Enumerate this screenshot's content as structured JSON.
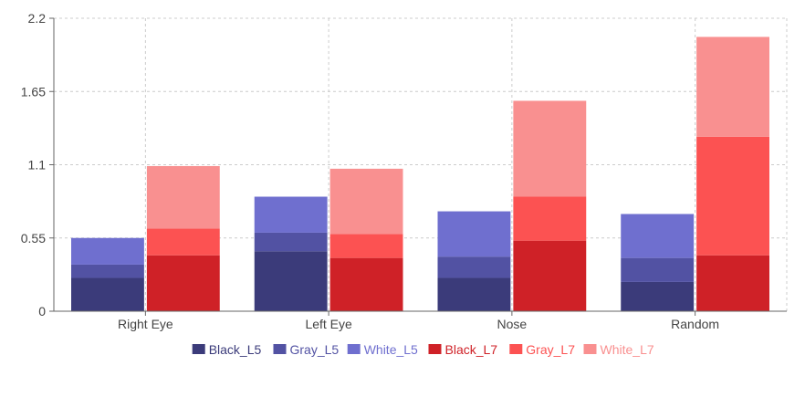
{
  "chart_data": {
    "type": "bar",
    "stacked": true,
    "grid": true,
    "legend_position": "bottom",
    "title": "",
    "xlabel": "",
    "ylabel": "",
    "categories": [
      "Right Eye",
      "Left Eye",
      "Nose",
      "Random"
    ],
    "ylim": [
      0,
      2.2
    ],
    "yticks": [
      "0",
      "0.55",
      "1.1",
      "1.65",
      "2.2"
    ],
    "stacks": [
      {
        "stack": "L5",
        "series": [
          {
            "name": "Black_L5",
            "color": "#3b3b7a",
            "values": [
              0.25,
              0.45,
              0.25,
              0.22
            ]
          },
          {
            "name": "Gray_L5",
            "color": "#5252a3",
            "values": [
              0.1,
              0.14,
              0.16,
              0.18
            ]
          },
          {
            "name": "White_L5",
            "color": "#6f6fcf",
            "values": [
              0.2,
              0.27,
              0.34,
              0.33
            ]
          }
        ]
      },
      {
        "stack": "L7",
        "series": [
          {
            "name": "Black_L7",
            "color": "#cf2127",
            "values": [
              0.42,
              0.4,
              0.53,
              0.42
            ]
          },
          {
            "name": "Gray_L7",
            "color": "#fc5252",
            "values": [
              0.2,
              0.18,
              0.33,
              0.89
            ]
          },
          {
            "name": "White_L7",
            "color": "#f99090",
            "values": [
              0.47,
              0.49,
              0.72,
              0.75
            ]
          }
        ]
      }
    ]
  }
}
